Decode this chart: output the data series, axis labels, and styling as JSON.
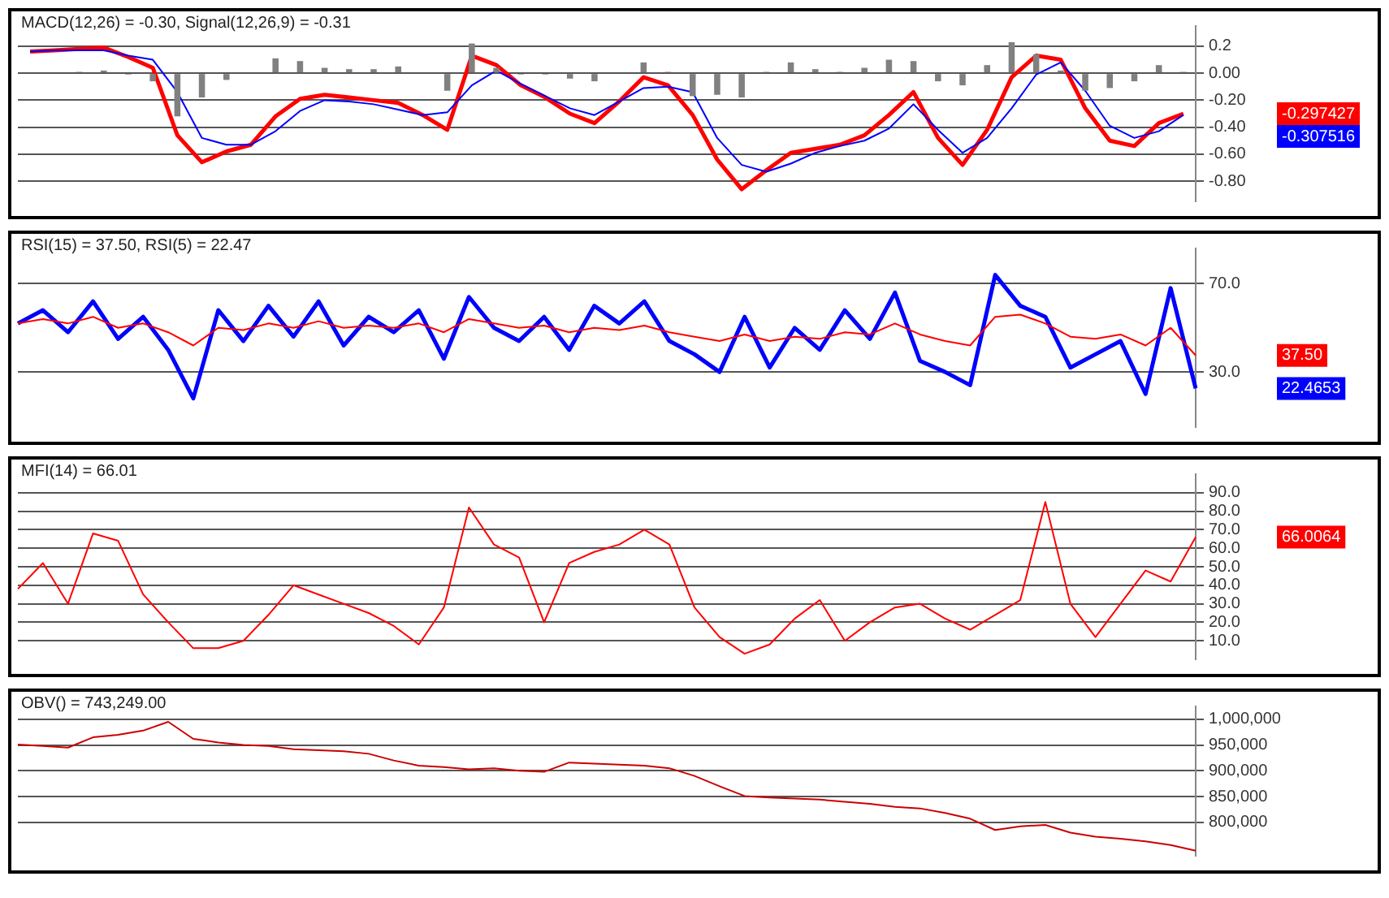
{
  "chart_data": [
    {
      "type": "line",
      "title": "MACD(12,26) = -0.30, Signal(12,26,9) = -0.31",
      "categories": [
        null,
        null,
        null,
        null,
        null,
        null,
        null,
        null,
        null,
        null,
        null,
        null,
        null,
        null,
        null,
        null,
        null,
        null,
        null,
        null,
        null,
        null,
        null,
        null,
        null,
        null,
        null,
        null,
        null,
        null,
        null,
        null,
        null,
        null,
        null,
        null,
        null,
        null,
        null,
        null,
        null,
        null,
        null,
        null,
        null,
        null,
        null,
        null
      ],
      "series": [
        {
          "type": "bar",
          "color": "#808080",
          "values": [
            0,
            0,
            0.01,
            0.02,
            -0.01,
            -0.06,
            -0.32,
            -0.18,
            -0.05,
            0,
            0.11,
            0.09,
            0.04,
            0.03,
            0.03,
            0.05,
            0,
            -0.13,
            0.22,
            0.04,
            -0.01,
            -0.01,
            -0.04,
            -0.06,
            0,
            0.08,
            0.01,
            -0.17,
            -0.16,
            -0.18,
            0.01,
            0.08,
            0.03,
            0.01,
            0.04,
            0.1,
            0.09,
            -0.06,
            -0.09,
            0.06,
            0.23,
            0.14,
            0.02,
            -0.13,
            -0.11,
            -0.06,
            0.06,
            0.01
          ]
        },
        {
          "type": "line",
          "color": "#ff0000",
          "values": [
            0.16,
            0.17,
            0.18,
            0.19,
            0.12,
            0.04,
            -0.46,
            -0.66,
            -0.58,
            -0.53,
            -0.32,
            -0.19,
            -0.16,
            -0.18,
            -0.2,
            -0.22,
            -0.31,
            -0.42,
            0.13,
            0.06,
            -0.09,
            -0.18,
            -0.3,
            -0.37,
            -0.21,
            -0.03,
            -0.09,
            -0.31,
            -0.64,
            -0.86,
            -0.72,
            -0.59,
            -0.56,
            -0.53,
            -0.46,
            -0.31,
            -0.14,
            -0.48,
            -0.68,
            -0.42,
            -0.03,
            0.13,
            0.1,
            -0.26,
            -0.5,
            -0.54,
            -0.37,
            -0.3
          ]
        },
        {
          "type": "line",
          "color": "#0000ff",
          "values": [
            0.16,
            0.17,
            0.17,
            0.17,
            0.13,
            0.1,
            -0.14,
            -0.48,
            -0.53,
            -0.53,
            -0.43,
            -0.28,
            -0.2,
            -0.21,
            -0.23,
            -0.27,
            -0.31,
            -0.29,
            -0.09,
            0.02,
            -0.08,
            -0.17,
            -0.26,
            -0.31,
            -0.21,
            -0.11,
            -0.1,
            -0.14,
            -0.48,
            -0.68,
            -0.73,
            -0.67,
            -0.59,
            -0.54,
            -0.5,
            -0.41,
            -0.23,
            -0.42,
            -0.59,
            -0.48,
            -0.26,
            -0.01,
            0.08,
            -0.13,
            -0.39,
            -0.48,
            -0.43,
            -0.31
          ]
        }
      ],
      "ylim": [
        -0.95,
        0.35
      ],
      "yticks": [
        0.2,
        {
          "value": 0,
          "label": "0.00"
        },
        {
          "value": -0.2,
          "label": "-0.20"
        },
        {
          "value": -0.4,
          "label": "-0.40"
        },
        {
          "value": -0.6,
          "label": "-0.60"
        },
        {
          "value": -0.8,
          "label": "-0.80"
        }
      ],
      "grid": "y",
      "annotations": [
        "-0.297427",
        "-0.307516"
      ]
    },
    {
      "type": "line",
      "title": "RSI(15) = 37.50, RSI(5) = 22.47",
      "categories": [
        null,
        null,
        null,
        null,
        null,
        null,
        null,
        null,
        null,
        null,
        null,
        null,
        null,
        null,
        null,
        null,
        null,
        null,
        null,
        null,
        null,
        null,
        null,
        null,
        null,
        null,
        null,
        null,
        null,
        null,
        null,
        null,
        null,
        null,
        null,
        null,
        null,
        null,
        null,
        null,
        null,
        null,
        null,
        null,
        null,
        null,
        null,
        null
      ],
      "series": [
        {
          "color": "#0000ff",
          "values": [
            52,
            58,
            48,
            62,
            45,
            55,
            40,
            18,
            58,
            44,
            60,
            46,
            62,
            42,
            55,
            48,
            58,
            36,
            64,
            50,
            44,
            55,
            40,
            60,
            52,
            62,
            44,
            38,
            30,
            55,
            32,
            50,
            40,
            58,
            45,
            66,
            35,
            30,
            24,
            74,
            60,
            55,
            32,
            38,
            44,
            20,
            68,
            22.5
          ]
        },
        {
          "color": "#ff0000",
          "values": [
            52,
            54,
            52,
            55,
            50,
            52,
            48,
            42,
            50,
            49,
            52,
            50,
            53,
            50,
            51,
            50,
            52,
            48,
            54,
            52,
            50,
            51,
            48,
            50,
            49,
            51,
            48,
            46,
            44,
            47,
            44,
            46,
            45,
            48,
            47,
            52,
            47,
            44,
            42,
            55,
            56,
            52,
            46,
            45,
            47,
            42,
            50,
            37.5
          ]
        }
      ],
      "ylim": [
        5,
        86
      ],
      "yticks": [
        {
          "value": 70,
          "label": "70.0"
        },
        {
          "value": 30,
          "label": "30.0"
        }
      ],
      "grid": "y",
      "annotations": [
        "22.4653",
        "37.50"
      ]
    },
    {
      "type": "line",
      "title": "MFI(14) = 66.01",
      "categories": [
        null,
        null,
        null,
        null,
        null,
        null,
        null,
        null,
        null,
        null,
        null,
        null,
        null,
        null,
        null,
        null,
        null,
        null,
        null,
        null,
        null,
        null,
        null,
        null,
        null,
        null,
        null,
        null,
        null,
        null,
        null,
        null,
        null,
        null,
        null,
        null,
        null,
        null,
        null,
        null,
        null,
        null,
        null,
        null,
        null,
        null,
        null,
        null
      ],
      "series": [
        {
          "color": "#ff0000",
          "values": [
            38,
            52,
            30,
            68,
            64,
            35,
            20,
            6,
            6,
            10,
            24,
            40,
            35,
            30,
            25,
            18,
            8,
            28,
            82,
            62,
            55,
            20,
            52,
            58,
            62,
            70,
            62,
            28,
            12,
            3,
            8,
            22,
            32,
            10,
            20,
            28,
            30,
            22,
            16,
            24,
            32,
            85,
            30,
            12,
            30,
            48,
            42,
            66
          ]
        }
      ],
      "ylim": [
        0,
        100
      ],
      "yticks": [
        {
          "value": 90,
          "label": "90.0"
        },
        {
          "value": 80,
          "label": "80.0"
        },
        {
          "value": 70,
          "label": "70.0"
        },
        {
          "value": 60,
          "label": "60.0"
        },
        {
          "value": 50,
          "label": "50.0"
        },
        {
          "value": 40,
          "label": "40.0"
        },
        {
          "value": 30,
          "label": "30.0"
        },
        {
          "value": 20,
          "label": "20.0"
        },
        {
          "value": 10,
          "label": "10.0"
        }
      ],
      "grid": "y",
      "annotations": [
        "66.0064"
      ]
    },
    {
      "type": "line",
      "title": "OBV() = 743,249.00",
      "categories": [
        null,
        null,
        null,
        null,
        null,
        null,
        null,
        null,
        null,
        null,
        null,
        null,
        null,
        null,
        null,
        null,
        null,
        null,
        null,
        null,
        null,
        null,
        null,
        null,
        null,
        null,
        null,
        null,
        null,
        null,
        null,
        null,
        null,
        null,
        null,
        null,
        null,
        null,
        null,
        null,
        null,
        null,
        null,
        null,
        null,
        null,
        null,
        null
      ],
      "series": [
        {
          "color": "#cc0000",
          "values": [
            951000,
            948000,
            945000,
            965000,
            970000,
            978000,
            995000,
            962000,
            955000,
            950000,
            948000,
            942000,
            940000,
            938000,
            933000,
            920000,
            910000,
            907000,
            903000,
            905000,
            900000,
            898000,
            916000,
            914000,
            912000,
            910000,
            905000,
            890000,
            870000,
            851000,
            848000,
            846000,
            844000,
            840000,
            836000,
            830000,
            827000,
            818000,
            807000,
            785000,
            792000,
            795000,
            780000,
            772000,
            768000,
            763000,
            756000,
            745000
          ]
        }
      ],
      "ylim": [
        735000,
        1025000
      ],
      "yticks": [
        {
          "value": 1000000,
          "label": "1,000,000"
        },
        {
          "value": 950000,
          "label": "950,000"
        },
        {
          "value": 900000,
          "label": "900,000"
        },
        {
          "value": 850000,
          "label": "850,000"
        },
        {
          "value": 800000,
          "label": "800,000"
        }
      ],
      "grid": "y"
    }
  ]
}
